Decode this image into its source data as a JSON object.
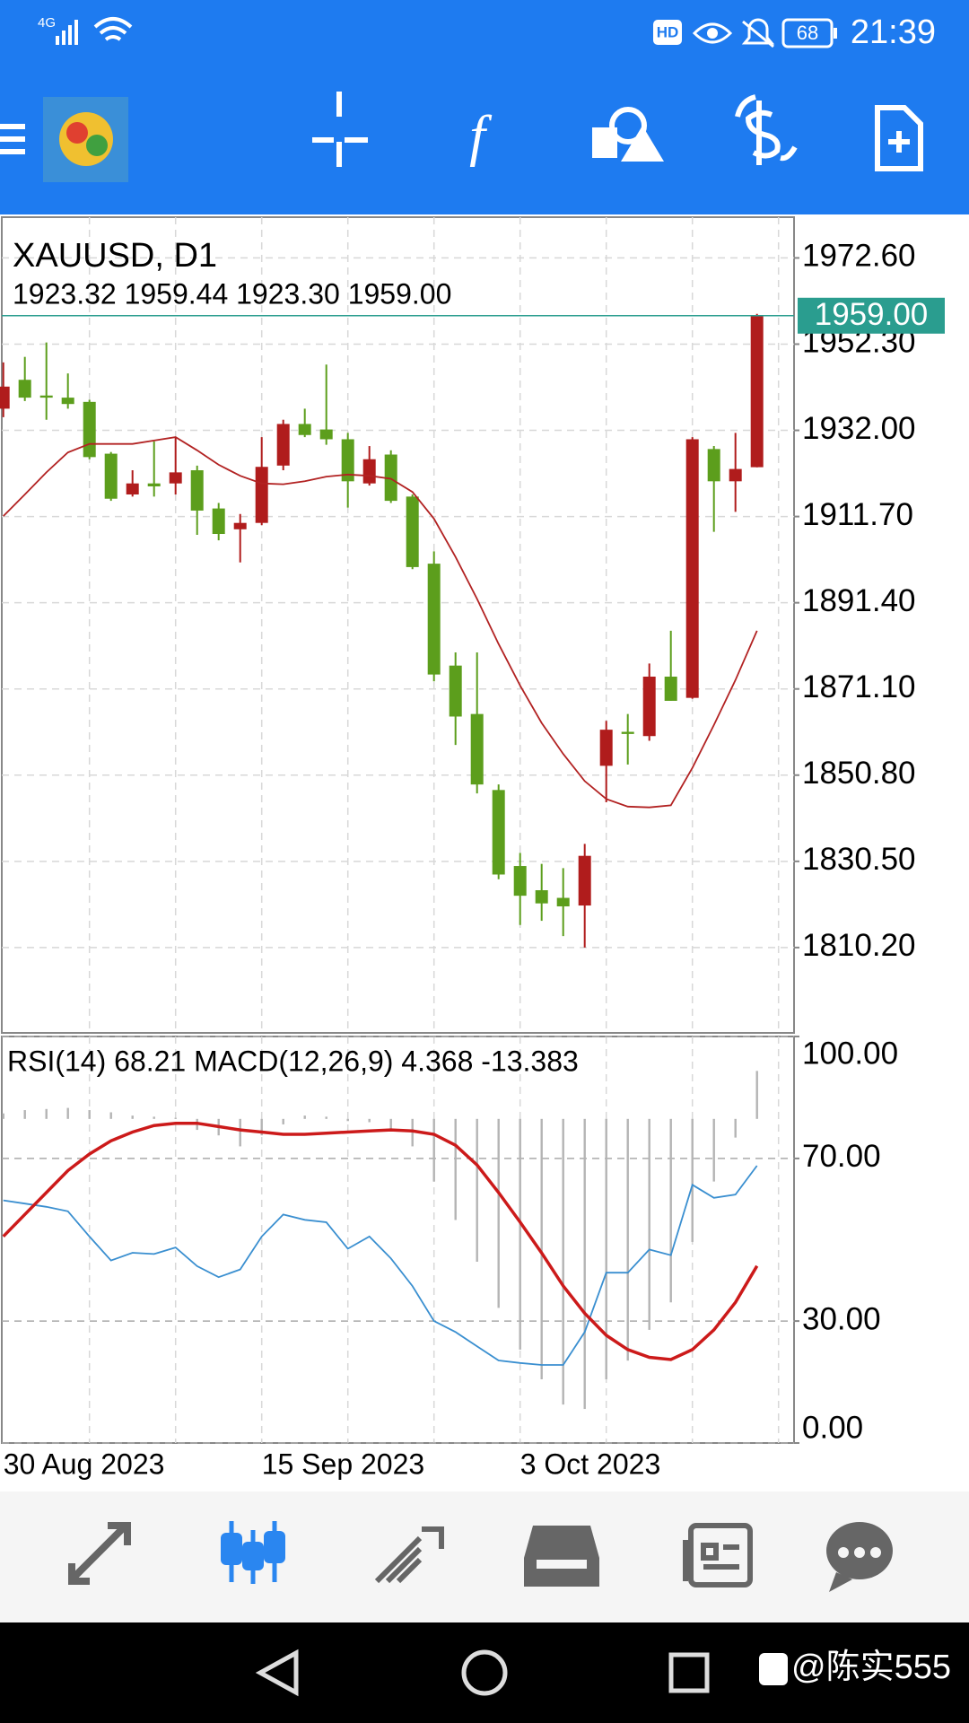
{
  "status_bar": {
    "network": "4G",
    "hd": "HD",
    "battery": "68",
    "time": "21:39"
  },
  "watermark": "@陈实555",
  "chart_data": [
    {
      "type": "candlestick",
      "title": "XAUUSD, D1",
      "subtitle": "1923.32 1959.44 1923.30 1959.00",
      "categories": [
        "30 Aug 2023",
        null,
        null,
        null,
        null,
        null,
        null,
        null,
        null,
        null,
        null,
        null,
        "15 Sep 2023",
        null,
        null,
        null,
        null,
        null,
        null,
        null,
        null,
        null,
        null,
        null,
        "3 Oct 2023",
        null,
        null,
        null,
        null,
        null,
        null,
        null,
        null,
        null,
        null,
        null
      ],
      "open": [
        1937.1,
        1943.9,
        1940.2,
        1939.7,
        1938.7,
        1926.5,
        1916.9,
        1919.5,
        1919.5,
        1922.6,
        1913.6,
        1908.7,
        1910.2,
        1923.7,
        1933.5,
        1932.2,
        1929.9,
        1919.5,
        1926.3,
        1916.4,
        1900.6,
        1876.6,
        1865.2,
        1847.3,
        1829.4,
        1823.7,
        1821.9,
        1820.1,
        1853.0,
        1861.0,
        1860.0,
        1874.0,
        1869.0,
        1927.6,
        1920.0,
        1923.32
      ],
      "high": [
        1948.0,
        1949.3,
        1952.7,
        1945.4,
        1939.2,
        1926.9,
        1922.6,
        1929.4,
        1930.4,
        1923.7,
        1914.9,
        1912.3,
        1930.4,
        1934.5,
        1937.1,
        1947.5,
        1931.4,
        1928.3,
        1927.3,
        1916.9,
        1903.5,
        1879.7,
        1879.7,
        1848.6,
        1832.5,
        1829.9,
        1828.9,
        1834.6,
        1863.6,
        1865.2,
        1877.1,
        1884.8,
        1930.4,
        1928.3,
        1931.4,
        1959.44
      ],
      "low": [
        1935.1,
        1938.9,
        1934.5,
        1937.1,
        1925.2,
        1915.4,
        1916.4,
        1916.4,
        1916.9,
        1907.4,
        1906.1,
        1900.9,
        1909.7,
        1922.6,
        1930.4,
        1928.6,
        1913.8,
        1919.0,
        1914.9,
        1899.3,
        1872.9,
        1857.9,
        1846.5,
        1826.3,
        1815.5,
        1816.5,
        1812.9,
        1810.2,
        1844.4,
        1853.3,
        1858.9,
        1868.3,
        1868.8,
        1908.1,
        1912.8,
        1923.3
      ],
      "close": [
        1942.3,
        1939.7,
        1939.7,
        1938.2,
        1925.7,
        1915.9,
        1919.5,
        1918.8,
        1922.1,
        1913.1,
        1907.6,
        1910.2,
        1923.4,
        1933.5,
        1930.9,
        1929.9,
        1920.0,
        1925.2,
        1915.4,
        1899.8,
        1874.5,
        1864.6,
        1848.6,
        1827.4,
        1822.4,
        1820.6,
        1819.9,
        1831.8,
        1861.5,
        1860.5,
        1874.0,
        1868.3,
        1929.9,
        1920.0,
        1922.9,
        1959.0
      ],
      "up_color": "#b01c1c",
      "down_color": "#5c9e1c",
      "lines": [
        {
          "color": "#b22222",
          "values": [
            1911.8,
            1916.9,
            1922.1,
            1926.8,
            1928.8,
            1928.8,
            1928.8,
            1929.6,
            1930.4,
            1927.3,
            1923.9,
            1921.3,
            1919.5,
            1919.3,
            1920.0,
            1921.1,
            1921.6,
            1921.3,
            1920.6,
            1917.5,
            1911.2,
            1902.2,
            1892.3,
            1881.7,
            1871.9,
            1863.1,
            1855.8,
            1849.4,
            1845.2,
            1843.4,
            1843.2,
            1843.7,
            1852.5,
            1862.6,
            1873.2,
            1884.8
          ]
        }
      ],
      "last_price": {
        "value": 1959.0,
        "label": "1959.00",
        "color": "#2a9d8f"
      },
      "ylim": [
        1790.1,
        1982.2
      ],
      "yticks": [
        {
          "value": 1972.6,
          "label": "1972.60"
        },
        {
          "value": 1952.3,
          "label": "1952.30"
        },
        {
          "value": 1932.0,
          "label": "1932.00"
        },
        {
          "value": 1911.7,
          "label": "1911.70"
        },
        {
          "value": 1891.4,
          "label": "1891.40"
        },
        {
          "value": 1871.1,
          "label": "1871.10"
        },
        {
          "value": 1850.8,
          "label": "1850.80"
        },
        {
          "value": 1830.5,
          "label": "1830.50"
        },
        {
          "value": 1810.2,
          "label": "1810.20"
        }
      ],
      "grid": true
    },
    {
      "type": "indicator",
      "title": "RSI(14) 68.21 MACD(12,26,9) 4.368 -13.383",
      "ylim": [
        0,
        100
      ],
      "yticks": [
        {
          "value": 100,
          "label": "100.00"
        },
        {
          "value": 70,
          "label": "70.00"
        },
        {
          "value": 30,
          "label": "30.00"
        },
        {
          "value": 0,
          "label": "0.00"
        }
      ],
      "rsi": {
        "color": "#3a8fd0",
        "values": [
          59.7,
          58.9,
          58.1,
          57.0,
          50.8,
          44.9,
          46.8,
          46.5,
          48.1,
          43.5,
          40.8,
          42.7,
          50.8,
          56.2,
          54.9,
          54.3,
          47.8,
          50.8,
          45.4,
          38.6,
          30.0,
          27.3,
          23.8,
          20.3,
          19.7,
          19.2,
          19.2,
          27.3,
          41.9,
          41.9,
          47.6,
          46.2,
          63.5,
          60.3,
          61.1,
          68.21
        ]
      },
      "macd": {
        "color": "#b4b4b4",
        "ylim": [
          -29.5,
          7.5
        ],
        "values": [
          0.5,
          0.8,
          0.9,
          1.0,
          0.8,
          0.6,
          0.3,
          0.2,
          0.1,
          -1.0,
          -1.5,
          -2.5,
          -1.5,
          -0.5,
          0.3,
          0.2,
          -0.2,
          -0.3,
          -1.0,
          -2.5,
          -5.7,
          -9.2,
          -13.0,
          -17.2,
          -21.0,
          -23.7,
          -26.0,
          -26.4,
          -23.7,
          -22.0,
          -19.2,
          -16.7,
          -11.2,
          -5.7,
          -1.7,
          4.368
        ]
      },
      "signal": {
        "color": "#cc1a1a",
        "values": [
          -10.7,
          -8.7,
          -6.7,
          -4.7,
          -3.2,
          -2.0,
          -1.2,
          -0.6,
          -0.4,
          -0.4,
          -0.7,
          -1.0,
          -1.2,
          -1.4,
          -1.4,
          -1.3,
          -1.2,
          -1.1,
          -1.0,
          -1.1,
          -1.4,
          -2.4,
          -4.2,
          -6.7,
          -9.4,
          -12.2,
          -15.2,
          -17.7,
          -19.7,
          -21.0,
          -21.7,
          -21.9,
          -21.0,
          -19.2,
          -16.7,
          -13.383
        ]
      },
      "grid": true
    }
  ]
}
